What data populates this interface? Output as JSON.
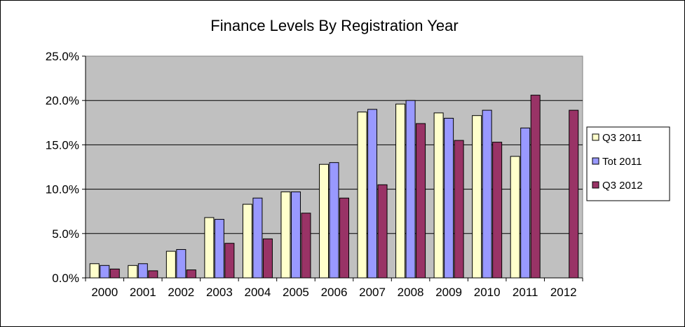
{
  "chart_data": {
    "type": "bar",
    "title": "Finance Levels By Registration Year",
    "xlabel": "",
    "ylabel": "",
    "categories": [
      "2000",
      "2001",
      "2002",
      "2003",
      "2004",
      "2005",
      "2006",
      "2007",
      "2008",
      "2009",
      "2010",
      "2011",
      "2012"
    ],
    "series": [
      {
        "name": "Q3 2011",
        "color": "#FFFFCC",
        "values": [
          1.6,
          1.4,
          3.0,
          6.8,
          8.3,
          9.7,
          12.8,
          18.7,
          19.6,
          18.6,
          18.3,
          13.7,
          null
        ]
      },
      {
        "name": "Tot 2011",
        "color": "#9999FF",
        "values": [
          1.4,
          1.6,
          3.2,
          6.6,
          9.0,
          9.7,
          13.0,
          19.0,
          20.0,
          18.0,
          18.9,
          16.9,
          null
        ]
      },
      {
        "name": "Q3 2012",
        "color": "#993366",
        "values": [
          1.0,
          0.8,
          0.9,
          3.9,
          4.4,
          7.3,
          9.0,
          10.5,
          17.4,
          15.5,
          15.3,
          20.6,
          18.9
        ]
      }
    ],
    "ylim": [
      0,
      25
    ],
    "yticks": [
      0,
      5,
      10,
      15,
      20,
      25
    ],
    "ytick_labels": [
      "0.0%",
      "5.0%",
      "10.0%",
      "15.0%",
      "20.0%",
      "25.0%"
    ],
    "grid": true,
    "plot_background": "#C0C0C0",
    "legend_position": "right"
  }
}
